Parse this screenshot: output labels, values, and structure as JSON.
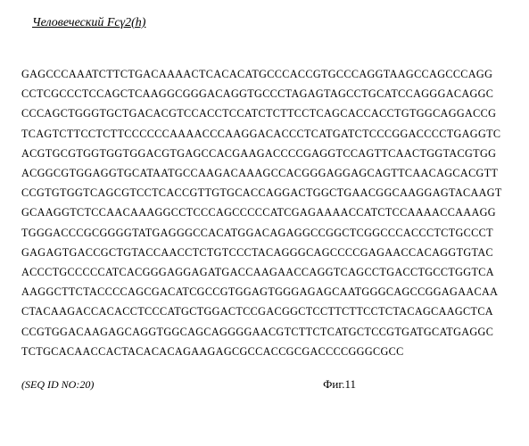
{
  "title": "Человеческий Fcγ2(h)",
  "sequence_lines": [
    "GAGCCCAAATCTTCTGACAAAACTCACACATGCCCACCGTGCCCAGGTAAGCCAGCCCAGG",
    "CCTCGCCCTCCAGCTCAAGGCGGGACAGGTGCCCTAGAGTAGCCTGCATCCAGGGACAGGC",
    "CCCAGCTGGGTGCTGACACGTCCACCTCCATCTCTTCCTCAGCACCACCTGTGGCAGGACCG",
    "TCAGTCTTCCTCTTCCCCCCAAAACCCAAGGACACCCTCATGATCTCCCGGACCCCTGAGGTC",
    "ACGTGCGTGGTGGTGGACGTGAGCCACGAAGACCCCGAGGTCCAGTTCAACTGGTACGTGG",
    "ACGGCGTGGAGGTGCATAATGCCAAGACAAAGCCACGGGAGGAGCAGTTCAACAGCACGTT",
    "CCGTGTGGTCAGCGTCCTCACCGTTGTGCACCAGGACTGGCTGAACGGCAAGGAGTACAAGT",
    "GCAAGGTCTCCAACAAAGGCCTCCCAGCCCCCATCGAGAAAACCATCTCCAAAACCAAAGG",
    "TGGGACCCGCGGGGTATGAGGGCCACATGGACAGAGGCCGGCTCGGCCCACCCTCTGCCCT",
    "GAGAGTGACCGCTGTACCAACCTCTGTCCCTACAGGGCAGCCCCGAGAACCACAGGTGTAC",
    "ACCCTGCCCCCATCACGGGAGGAGATGACCAAGAACCAGGTCAGCCTGACCTGCCTGGTCA",
    "AAGGCTTCTACCCCAGCGACATCGCCGTGGAGTGGGAGAGCAATGGGCAGCCGGAGAACAA",
    "CTACAAGACCACACCTCCCATGCTGGACTCCGACGGCTCCTTCTTCCTCTACAGCAAGCTCA",
    "CCGTGGACAAGAGCAGGTGGCAGCAGGGGAACGTCTTCTCATGCTCCGTGATGCATGAGGC",
    "TCTGCACAACCACTACACACAGAAGAGCGCCACCGCGACCCCGGGCGCC"
  ],
  "seq_id_label": "(SEQ ID NO:20)",
  "figure_label": "Фиг.11",
  "styling": {
    "background_color": "#ffffff",
    "text_color": "#000000",
    "title_fontsize": 14,
    "title_style": "italic underline",
    "sequence_fontsize": 12.2,
    "sequence_line_height": 1.82,
    "sequence_letter_spacing": 0.35,
    "seq_id_fontsize": 12,
    "seq_id_style": "italic",
    "figure_label_fontsize": 13,
    "font_family": "Times New Roman"
  }
}
